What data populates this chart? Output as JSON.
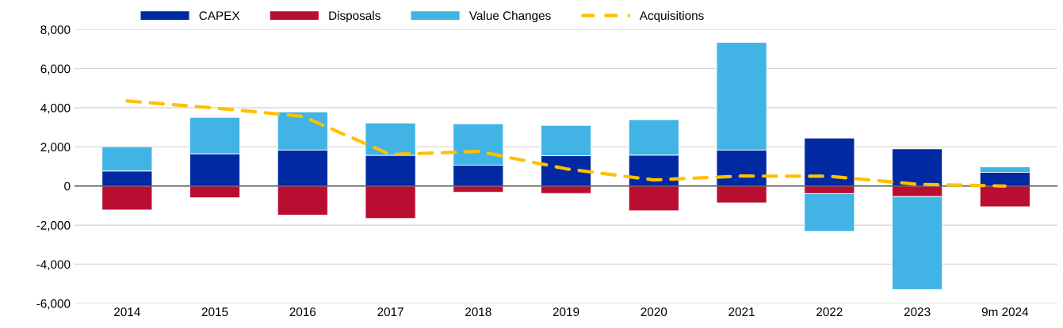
{
  "chart_data": {
    "type": "bar",
    "stacked": true,
    "categories": [
      "2014",
      "2015",
      "2016",
      "2017",
      "2018",
      "2019",
      "2020",
      "2021",
      "2022",
      "2023",
      "9m 2024"
    ],
    "series": [
      {
        "name": "CAPEX",
        "color": "#0029a2",
        "values": [
          770,
          1650,
          1840,
          1570,
          1070,
          1550,
          1580,
          1840,
          2450,
          1900,
          700
        ]
      },
      {
        "name": "Disposals",
        "color": "#b90e31",
        "values": [
          -1220,
          -600,
          -1490,
          -1660,
          -320,
          -380,
          -1260,
          -860,
          -390,
          -540,
          -1060
        ]
      },
      {
        "name": "Value Changes",
        "color": "#41b4e5",
        "values": [
          1240,
          1860,
          1950,
          1650,
          2110,
          1550,
          1810,
          5500,
          -1930,
          -4750,
          280
        ]
      },
      {
        "name": "Acquisitions",
        "type": "line",
        "color": "#ffc000",
        "line_style": "dashed",
        "values": [
          4350,
          3990,
          3560,
          1610,
          1770,
          880,
          310,
          510,
          500,
          90,
          0
        ]
      }
    ],
    "ylim": [
      -6000,
      8000
    ],
    "yticks": [
      {
        "value": -6000,
        "label": "-6,000"
      },
      {
        "value": -4000,
        "label": "-4,000"
      },
      {
        "value": -2000,
        "label": "-2,000"
      },
      0,
      {
        "value": 2000,
        "label": "2,000"
      },
      {
        "value": 4000,
        "label": "4,000"
      },
      {
        "value": 6000,
        "label": "6,000"
      },
      {
        "value": 8000,
        "label": "8,000"
      }
    ],
    "grid": "y",
    "legend": "top left"
  }
}
